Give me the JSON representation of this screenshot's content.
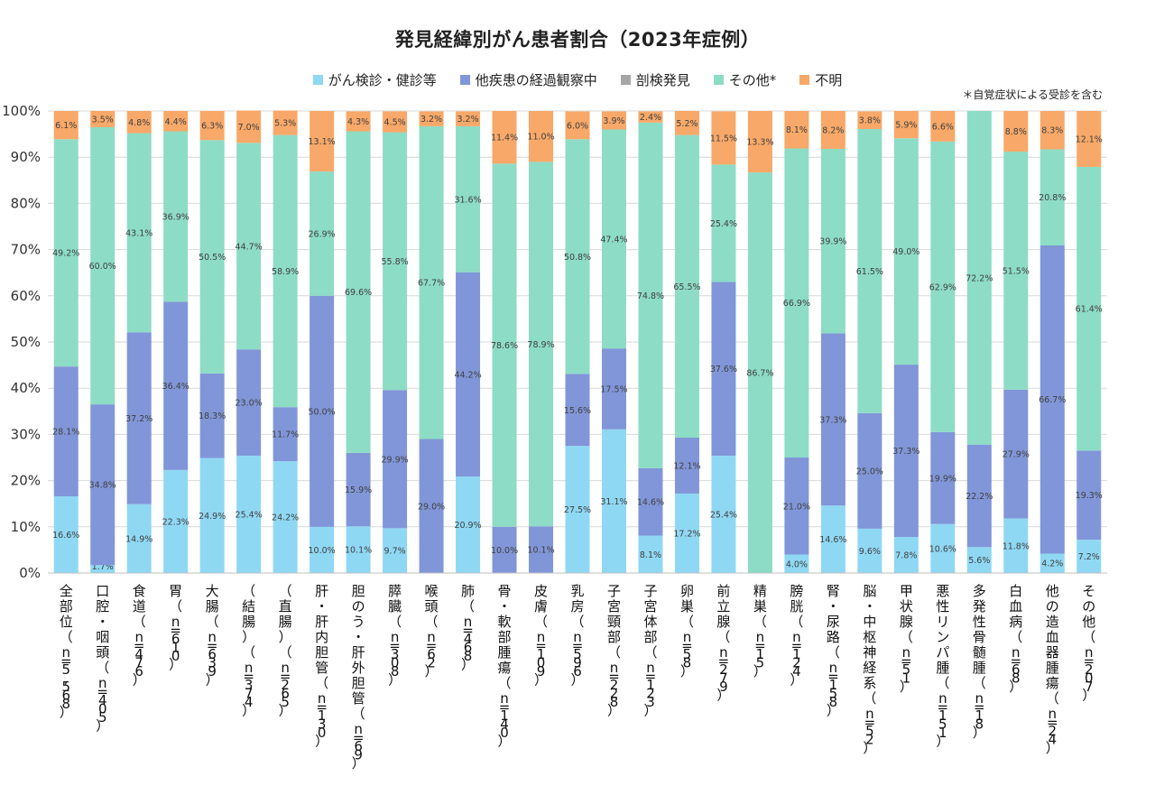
{
  "chart_data": {
    "type": "bar",
    "stacked": true,
    "title": "発見経緯別がん患者割合（2023年症例）",
    "footnote": "＊自覚症状による受診を含む",
    "ylim": [
      0,
      100
    ],
    "yticks": [
      "0%",
      "10%",
      "20%",
      "30%",
      "40%",
      "50%",
      "60%",
      "70%",
      "80%",
      "90%",
      "100%"
    ],
    "grid": true,
    "legend_position": "top",
    "categories": [
      {
        "name": "全部位",
        "n": "（n=5,568）"
      },
      {
        "name": "口腔・咽頭",
        "n": "（n=405）"
      },
      {
        "name": "食道",
        "n": "（n=476）"
      },
      {
        "name": "胃",
        "n": "（n=610）"
      },
      {
        "name": "大腸",
        "n": "（n=639）"
      },
      {
        "name": "（結腸）",
        "n": "（n=374）"
      },
      {
        "name": "（直腸）",
        "n": "（n=265）"
      },
      {
        "name": "肝・肝内胆管",
        "n": "（n=130）"
      },
      {
        "name": "胆のう・肝外胆管",
        "n": "（n=69）"
      },
      {
        "name": "膵臓",
        "n": "（n=308）"
      },
      {
        "name": "喉頭",
        "n": "（n=62）"
      },
      {
        "name": "肺",
        "n": "（n=468）"
      },
      {
        "name": "骨・軟部腫瘍",
        "n": "（n=140）"
      },
      {
        "name": "皮膚",
        "n": "（n=109）"
      },
      {
        "name": "乳房",
        "n": "（n=596）"
      },
      {
        "name": "子宮頸部",
        "n": "（n=228）"
      },
      {
        "name": "子宮体部",
        "n": "（n=123）"
      },
      {
        "name": "卵巣",
        "n": "（n=58）"
      },
      {
        "name": "前立腺",
        "n": "（n=279）"
      },
      {
        "name": "精巣",
        "n": "（n=15）"
      },
      {
        "name": "膀胱",
        "n": "（n=124）"
      },
      {
        "name": "腎・尿路",
        "n": "（n=158）"
      },
      {
        "name": "脳・中枢神経系",
        "n": "（n=52）"
      },
      {
        "name": "甲状腺",
        "n": "（n=51）"
      },
      {
        "name": "悪性リンパ腫",
        "n": "（n=151）"
      },
      {
        "name": "多発性骨髄腫",
        "n": "（n=18）"
      },
      {
        "name": "白血病",
        "n": "（n=68）"
      },
      {
        "name": "他の造血器腫瘍",
        "n": "（n=24）"
      },
      {
        "name": "その他",
        "n": "（n=207）"
      }
    ],
    "series": [
      {
        "name": "がん検診・健診等",
        "color": "#8fd8f4",
        "values": [
          16.6,
          1.7,
          14.9,
          22.3,
          24.9,
          25.4,
          24.2,
          10.0,
          10.1,
          9.7,
          0,
          20.9,
          0,
          0,
          27.5,
          31.1,
          8.1,
          17.2,
          25.4,
          0,
          4.0,
          14.6,
          9.6,
          7.8,
          10.6,
          5.6,
          11.8,
          4.2,
          7.2
        ],
        "labels": [
          "16.6%",
          "1.7%",
          "14.9%",
          "22.3%",
          "24.9%",
          "25.4%",
          "24.2%",
          "10.0%",
          "10.1%",
          "9.7%",
          "",
          "20.9%",
          "",
          "",
          "27.5%",
          "31.1%",
          "8.1%",
          "17.2%",
          "25.4%",
          "",
          "4.0%",
          "14.6%",
          "9.6%",
          "7.8%",
          "10.6%",
          "5.6%",
          "11.8%",
          "4.2%",
          "7.2%"
        ]
      },
      {
        "name": "他疾患の経過観察中",
        "color": "#8096d8",
        "values": [
          28.1,
          34.8,
          37.2,
          36.4,
          18.3,
          23.0,
          11.7,
          50.0,
          15.9,
          29.9,
          29.0,
          44.2,
          10.0,
          10.1,
          15.6,
          17.5,
          14.6,
          12.1,
          37.6,
          0,
          21.0,
          37.3,
          25.0,
          37.3,
          19.9,
          22.2,
          27.9,
          66.7,
          19.3
        ],
        "labels": [
          "28.1%",
          "34.8%",
          "37.2%",
          "36.4%",
          "18.3%",
          "23.0%",
          "11.7%",
          "50.0%",
          "15.9%",
          "29.9%",
          "29.0%",
          "44.2%",
          "10.0%",
          "10.1%",
          "15.6%",
          "17.5%",
          "14.6%",
          "12.1%",
          "37.6%",
          "",
          "21.0%",
          "37.3%",
          "25.0%",
          "37.3%",
          "19.9%",
          "22.2%",
          "27.9%",
          "66.7%",
          "19.3%"
        ]
      },
      {
        "name": "剖検発見",
        "color": "#a6a6a6",
        "values": [
          0,
          0,
          0,
          0,
          0,
          0,
          0,
          0,
          0,
          0,
          0,
          0,
          0,
          0,
          0,
          0,
          0,
          0,
          0,
          0,
          0,
          0,
          0,
          0,
          0,
          0,
          0,
          0,
          0
        ],
        "labels": [
          "",
          "",
          "",
          "",
          "",
          "",
          "",
          "",
          "",
          "",
          "",
          "",
          "",
          "",
          "",
          "",
          "",
          "",
          "",
          "",
          "",
          "",
          "",
          "",
          "",
          "",
          "",
          "",
          ""
        ]
      },
      {
        "name": "その他*",
        "color": "#8ddcc5",
        "values": [
          49.2,
          60.0,
          43.1,
          36.9,
          50.5,
          44.7,
          58.9,
          26.9,
          69.6,
          55.8,
          67.7,
          31.6,
          78.6,
          78.9,
          50.8,
          47.4,
          74.8,
          65.5,
          25.4,
          86.7,
          66.9,
          39.9,
          61.5,
          49.0,
          62.9,
          72.2,
          51.5,
          20.8,
          61.4
        ],
        "labels": [
          "49.2%",
          "60.0%",
          "43.1%",
          "36.9%",
          "50.5%",
          "44.7%",
          "58.9%",
          "26.9%",
          "69.6%",
          "55.8%",
          "67.7%",
          "31.6%",
          "78.6%",
          "78.9%",
          "50.8%",
          "47.4%",
          "74.8%",
          "65.5%",
          "25.4%",
          "86.7%",
          "66.9%",
          "39.9%",
          "61.5%",
          "49.0%",
          "62.9%",
          "72.2%",
          "51.5%",
          "20.8%",
          "61.4%"
        ]
      },
      {
        "name": "不明",
        "color": "#f8a868",
        "values": [
          6.1,
          3.5,
          4.8,
          4.4,
          6.3,
          7.0,
          5.3,
          13.1,
          4.3,
          4.5,
          3.2,
          3.2,
          11.4,
          11.0,
          6.0,
          3.9,
          2.4,
          5.2,
          11.5,
          13.3,
          8.1,
          8.2,
          3.8,
          5.9,
          6.6,
          0,
          8.8,
          8.3,
          12.1
        ],
        "labels": [
          "6.1%",
          "3.5%",
          "4.8%",
          "4.4%",
          "6.3%",
          "7.0%",
          "5.3%",
          "13.1%",
          "4.3%",
          "4.5%",
          "3.2%",
          "3.2%",
          "11.4%",
          "11.0%",
          "6.0%",
          "3.9%",
          "2.4%",
          "5.2%",
          "11.5%",
          "13.3%",
          "8.1%",
          "8.2%",
          "3.8%",
          "5.9%",
          "6.6%",
          "",
          "8.8%",
          "8.3%",
          "12.1%"
        ]
      }
    ]
  }
}
